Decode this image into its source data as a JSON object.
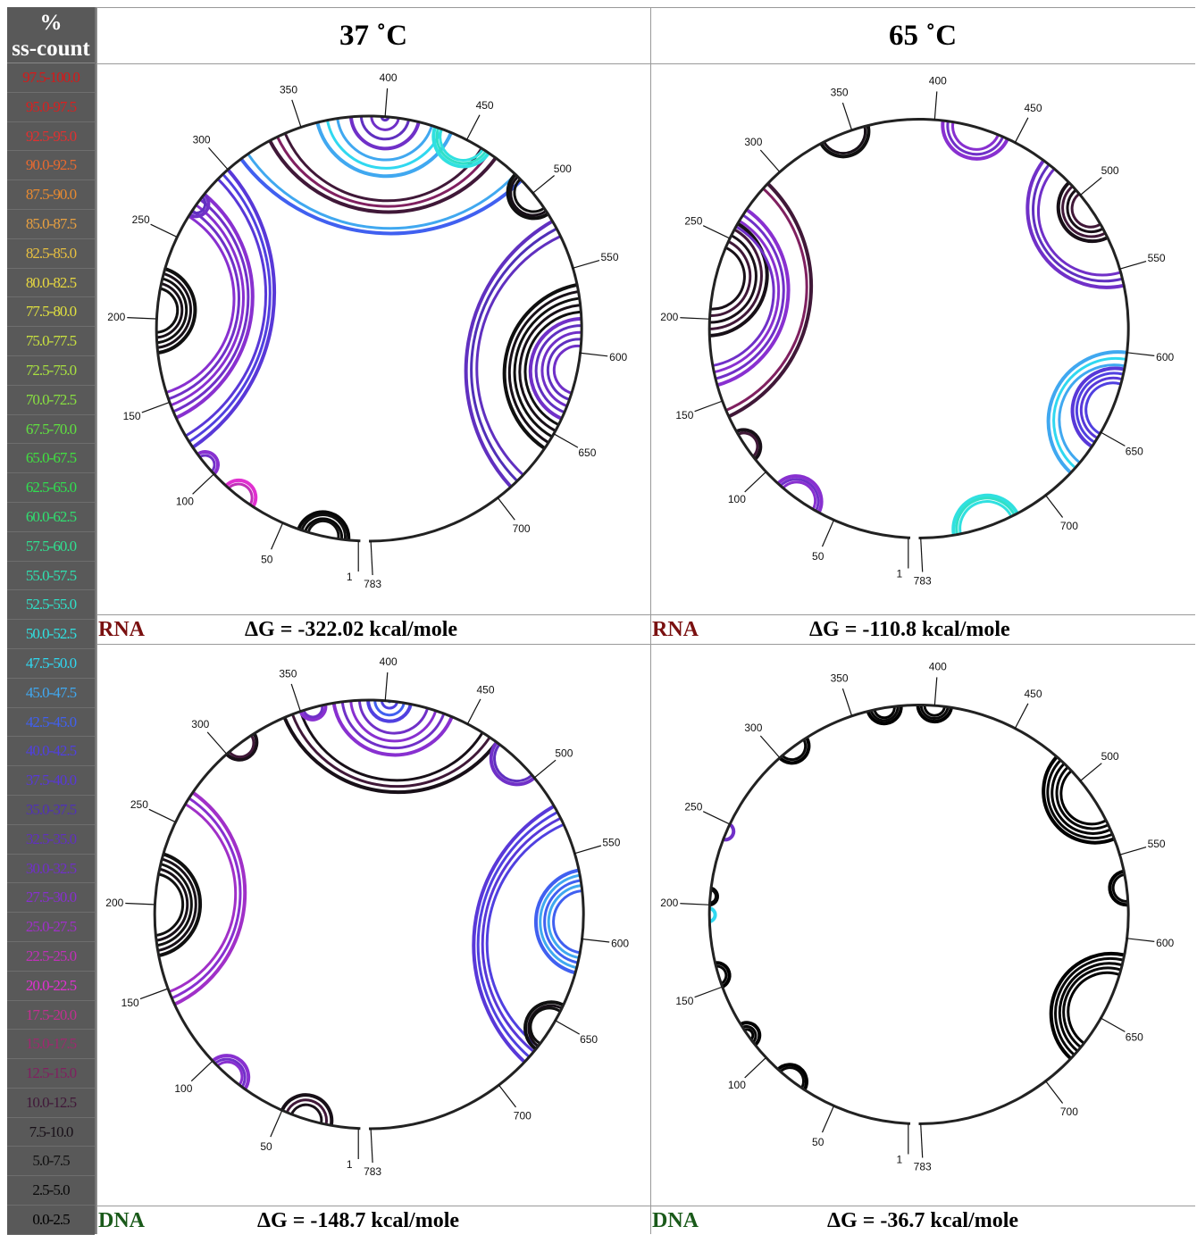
{
  "legend": {
    "header_line1": "%",
    "header_line2": "ss-count",
    "bins": [
      {
        "label": "97.5-100.0",
        "color": "#d81818"
      },
      {
        "label": "95.0-97.5",
        "color": "#d82020"
      },
      {
        "label": "92.5-95.0",
        "color": "#e03030"
      },
      {
        "label": "90.0-92.5",
        "color": "#e86a30"
      },
      {
        "label": "87.5-90.0",
        "color": "#e88a30"
      },
      {
        "label": "85.0-87.5",
        "color": "#e8a040"
      },
      {
        "label": "82.5-85.0",
        "color": "#e8c040"
      },
      {
        "label": "80.0-82.5",
        "color": "#e8d840"
      },
      {
        "label": "77.5-80.0",
        "color": "#e0e040"
      },
      {
        "label": "75.0-77.5",
        "color": "#c8e040"
      },
      {
        "label": "72.5-75.0",
        "color": "#a8e040"
      },
      {
        "label": "70.0-72.5",
        "color": "#88e040"
      },
      {
        "label": "67.5-70.0",
        "color": "#60e040"
      },
      {
        "label": "65.0-67.5",
        "color": "#40e040"
      },
      {
        "label": "62.5-65.0",
        "color": "#30e050"
      },
      {
        "label": "60.0-62.5",
        "color": "#30e070"
      },
      {
        "label": "57.5-60.0",
        "color": "#30e090"
      },
      {
        "label": "55.0-57.5",
        "color": "#30e0b0"
      },
      {
        "label": "52.5-55.0",
        "color": "#30e0c8"
      },
      {
        "label": "50.0-52.5",
        "color": "#30e0e0"
      },
      {
        "label": "47.5-50.0",
        "color": "#30d8f0"
      },
      {
        "label": "45.0-47.5",
        "color": "#40a8f0"
      },
      {
        "label": "42.5-45.0",
        "color": "#4060f0"
      },
      {
        "label": "40.0-42.5",
        "color": "#5040e0"
      },
      {
        "label": "37.5-40.0",
        "color": "#5838d8"
      },
      {
        "label": "35.0-37.5",
        "color": "#5030b8"
      },
      {
        "label": "32.5-35.0",
        "color": "#6030c0"
      },
      {
        "label": "30.0-32.5",
        "color": "#7030c8"
      },
      {
        "label": "27.5-30.0",
        "color": "#8830d0"
      },
      {
        "label": "25.0-27.5",
        "color": "#a030c8"
      },
      {
        "label": "22.5-25.0",
        "color": "#c030b8"
      },
      {
        "label": "20.0-22.5",
        "color": "#e030d0"
      },
      {
        "label": "17.5-20.0",
        "color": "#c03090"
      },
      {
        "label": "15.0-17.5",
        "color": "#a02870"
      },
      {
        "label": "12.5-15.0",
        "color": "#802060"
      },
      {
        "label": "10.0-12.5",
        "color": "#401838"
      },
      {
        "label": "7.5-10.0",
        "color": "#181018"
      },
      {
        "label": "5.0-7.5",
        "color": "#101010"
      },
      {
        "label": "2.5-5.0",
        "color": "#080808"
      },
      {
        "label": "0.0-2.5",
        "color": "#000000"
      }
    ]
  },
  "columns": [
    {
      "title": "37 ˚C"
    },
    {
      "title": "65 ˚C"
    }
  ],
  "panels": [
    {
      "molecule": "RNA",
      "molecule_color": "#7a1010",
      "energy": "ΔG = -322.02 kcal/mole"
    },
    {
      "molecule": "RNA",
      "molecule_color": "#7a1010",
      "energy": "ΔG = -110.8 kcal/mole"
    },
    {
      "molecule": "DNA",
      "molecule_color": "#1a5a1a",
      "energy": "ΔG = -148.7 kcal/mole"
    },
    {
      "molecule": "DNA",
      "molecule_color": "#1a5a1a",
      "energy": "ΔG = -36.7 kcal/mole"
    }
  ],
  "circle_plot": {
    "sequence_length": 783,
    "tick_labels": [
      "1",
      "50",
      "100",
      "150",
      "200",
      "250",
      "300",
      "350",
      "400",
      "450",
      "500",
      "550",
      "600",
      "650",
      "700",
      "783"
    ]
  }
}
